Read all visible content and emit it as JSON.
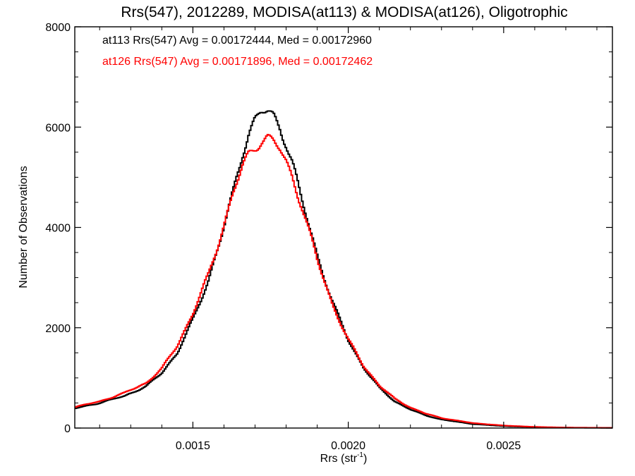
{
  "chart_data": {
    "type": "line",
    "style": "step-histogram",
    "title": "Rrs(547), 2012289, MODISA(at113) & MODISA(at126), Oligotrophic",
    "xlabel": "Rrs (str",
    "xlabel_sup": "-1",
    "xlabel_end": ")",
    "ylabel": "Number of Observations",
    "xlim": [
      0.00112,
      0.00285
    ],
    "ylim": [
      0,
      8000
    ],
    "xticks": [
      {
        "value": 0.0015,
        "label": "0.0015"
      },
      {
        "value": 0.002,
        "label": "0.0020"
      },
      {
        "value": 0.0025,
        "label": "0.0025"
      }
    ],
    "yticks": [
      {
        "value": 0,
        "label": "0"
      },
      {
        "value": 2000,
        "label": "2000"
      },
      {
        "value": 4000,
        "label": "4000"
      },
      {
        "value": 6000,
        "label": "6000"
      },
      {
        "value": 8000,
        "label": "8000"
      }
    ],
    "annotations": [
      {
        "text": "at113 Rrs(547) Avg = 0.00172444, Med = 0.00172960",
        "color": "#000000"
      },
      {
        "text": "at126 Rrs(547) Avg = 0.00171896, Med = 0.00172462",
        "color": "#ff0000"
      }
    ],
    "series": [
      {
        "color": "#000000",
        "points": [
          [
            0.00112,
            390
          ],
          [
            0.0012,
            500
          ],
          [
            0.00128,
            640
          ],
          [
            0.00135,
            830
          ],
          [
            0.0014,
            1100
          ],
          [
            0.00145,
            1500
          ],
          [
            0.0015,
            2150
          ],
          [
            0.00155,
            2950
          ],
          [
            0.0016,
            4000
          ],
          [
            0.00163,
            4700
          ],
          [
            0.00166,
            5500
          ],
          [
            0.00168,
            5900
          ],
          [
            0.0017,
            6150
          ],
          [
            0.00172,
            6300
          ],
          [
            0.00174,
            6300
          ],
          [
            0.00176,
            6200
          ],
          [
            0.00178,
            6000
          ],
          [
            0.0018,
            5700
          ],
          [
            0.00182,
            5300
          ],
          [
            0.00185,
            4550
          ],
          [
            0.0019,
            3450
          ],
          [
            0.00195,
            2500
          ],
          [
            0.002,
            1750
          ],
          [
            0.00205,
            1200
          ],
          [
            0.0021,
            800
          ],
          [
            0.00215,
            530
          ],
          [
            0.0022,
            370
          ],
          [
            0.00225,
            250
          ],
          [
            0.0023,
            170
          ],
          [
            0.0024,
            80
          ],
          [
            0.0025,
            38
          ],
          [
            0.0026,
            18
          ],
          [
            0.0027,
            8
          ],
          [
            0.00285,
            4
          ]
        ]
      },
      {
        "color": "#ff0000",
        "points": [
          [
            0.00112,
            420
          ],
          [
            0.0012,
            530
          ],
          [
            0.00128,
            700
          ],
          [
            0.00135,
            900
          ],
          [
            0.0014,
            1180
          ],
          [
            0.00145,
            1650
          ],
          [
            0.0015,
            2280
          ],
          [
            0.00155,
            3050
          ],
          [
            0.0016,
            4050
          ],
          [
            0.00163,
            4700
          ],
          [
            0.00166,
            5200
          ],
          [
            0.00168,
            5450
          ],
          [
            0.0017,
            5600
          ],
          [
            0.00172,
            5750
          ],
          [
            0.00174,
            5800
          ],
          [
            0.00176,
            5700
          ],
          [
            0.00178,
            5550
          ],
          [
            0.0018,
            5300
          ],
          [
            0.00182,
            5000
          ],
          [
            0.00185,
            4450
          ],
          [
            0.0019,
            3350
          ],
          [
            0.00195,
            2450
          ],
          [
            0.002,
            1760
          ],
          [
            0.00205,
            1230
          ],
          [
            0.0021,
            850
          ],
          [
            0.00215,
            580
          ],
          [
            0.0022,
            410
          ],
          [
            0.00225,
            285
          ],
          [
            0.0023,
            200
          ],
          [
            0.0024,
            100
          ],
          [
            0.0025,
            50
          ],
          [
            0.0026,
            24
          ],
          [
            0.0027,
            10
          ],
          [
            0.00285,
            5
          ]
        ]
      }
    ]
  }
}
